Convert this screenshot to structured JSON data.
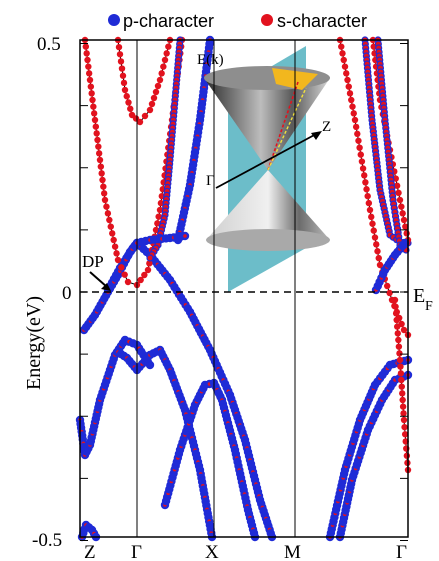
{
  "chart_data": {
    "type": "scatter",
    "legend": [
      {
        "label": "p-character",
        "color": "#1f2bd6"
      },
      {
        "label": "s-character",
        "color": "#e2121e"
      }
    ],
    "legend_position": "top",
    "ylabel": "Energy(eV)",
    "ylim": [
      -0.5,
      0.5
    ],
    "y_ticks": [
      "0.5",
      "0",
      "-0.5"
    ],
    "x_ticks": [
      "Z",
      "Γ",
      "X",
      "M",
      "Γ"
    ],
    "fermi_label": "E",
    "fermi_sub": "F",
    "annotation": "DP",
    "inset": {
      "ek_label": "E(k)",
      "axis_label": "Z",
      "gamma_label": "Γ"
    },
    "grid": false,
    "band_line_color": "#000000",
    "series": [
      {
        "name": "p-character",
        "kind": "band-points"
      },
      {
        "name": "s-character",
        "kind": "band-points"
      }
    ]
  }
}
